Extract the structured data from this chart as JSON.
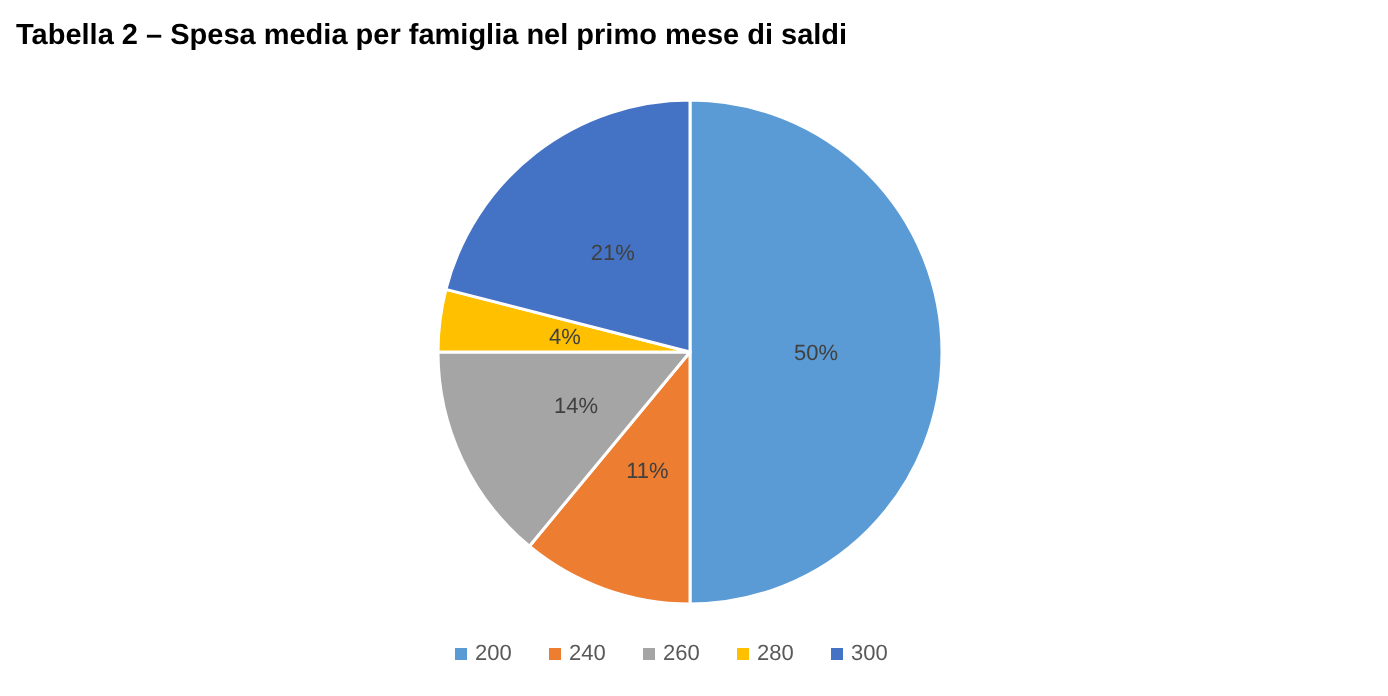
{
  "chart_data": {
    "type": "pie",
    "title": "Tabella 2 – Spesa media per famiglia nel primo mese di saldi",
    "categories": [
      "200",
      "240",
      "260",
      "280",
      "300"
    ],
    "values": [
      50,
      11,
      14,
      4,
      21
    ],
    "colors": [
      "#5b9bd5",
      "#ed7d31",
      "#a5a5a5",
      "#ffc000",
      "#4472c4"
    ],
    "value_labels": [
      "50%",
      "11%",
      "14%",
      "4%",
      "21%"
    ],
    "legend": "bottom"
  }
}
